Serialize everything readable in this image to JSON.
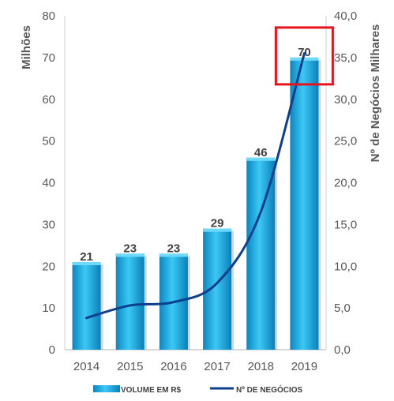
{
  "chart_data": {
    "type": "bar",
    "categories": [
      "2014",
      "2015",
      "2016",
      "2017",
      "2018",
      "2019"
    ],
    "series": [
      {
        "name": "VOLUME EM R$",
        "type": "bar",
        "axis": "left",
        "values": [
          21,
          23,
          23,
          29,
          46,
          70
        ],
        "labels": [
          "21",
          "23",
          "23",
          "29",
          "46",
          "70"
        ],
        "color": "#1fb2e8"
      },
      {
        "name": "Nº DE NEGÓCIOS",
        "type": "line",
        "axis": "right",
        "values": [
          3.8,
          5.3,
          5.7,
          8.0,
          16.5,
          35.5
        ],
        "color": "#0d3f8c"
      }
    ],
    "ylabel": "Milhões",
    "ylim": [
      0,
      80
    ],
    "yticks": [
      "0",
      "10",
      "20",
      "30",
      "40",
      "50",
      "60",
      "70",
      "80"
    ],
    "y2label": "Nº de Negócios Milhares",
    "y2lim": [
      0,
      40
    ],
    "y2ticks": [
      "0,0",
      "5,0",
      "10,0",
      "15,0",
      "20,0",
      "25,0",
      "30,0",
      "35,0",
      "40,0"
    ],
    "grid": false,
    "legend": "bottom",
    "annotation": {
      "type": "highlight-box",
      "target": "2019",
      "color": "#e8141b"
    }
  }
}
